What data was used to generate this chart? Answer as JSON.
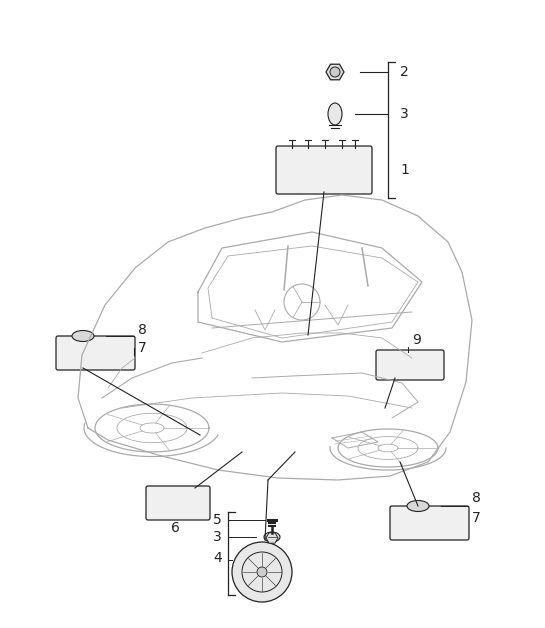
{
  "background_color": "#ffffff",
  "line_color": "#222222",
  "car_line_color": "#aaaaaa",
  "line_width": 0.8,
  "font_size": 9
}
